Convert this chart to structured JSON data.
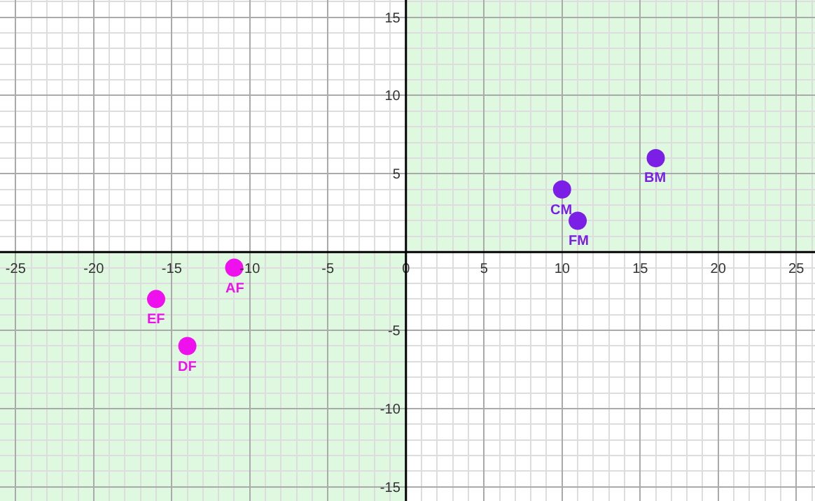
{
  "chart_data": {
    "type": "scatter",
    "marker": "circle",
    "grid": true,
    "xlim": [
      -26,
      26.2
    ],
    "ylim": [
      -15.9,
      16.1
    ],
    "xticks": [
      -25,
      -20,
      -15,
      -10,
      -5,
      0,
      5,
      10,
      15,
      20,
      25
    ],
    "yticks": [
      -15,
      -10,
      -5,
      {
        "value": 0,
        "label": null
      },
      5,
      10,
      15
    ],
    "series": [
      {
        "color": "#ee11ee",
        "x": [
          -11,
          -16,
          -14
        ],
        "values": [
          -1,
          -3,
          -6
        ]
      },
      {
        "color": "#7b1fe6",
        "x": [
          10,
          11,
          16
        ],
        "values": [
          4,
          2,
          6
        ]
      }
    ],
    "annotations": [
      {
        "text": "AF",
        "x": -11,
        "y": -1
      },
      {
        "text": "EF",
        "x": -16,
        "y": -3
      },
      {
        "text": "DF",
        "x": -14,
        "y": -6
      },
      {
        "text": "CM",
        "x": 10,
        "y": 4
      },
      {
        "text": "FM",
        "x": 11,
        "y": 2
      },
      {
        "text": "BM",
        "x": 16,
        "y": 6
      }
    ]
  }
}
